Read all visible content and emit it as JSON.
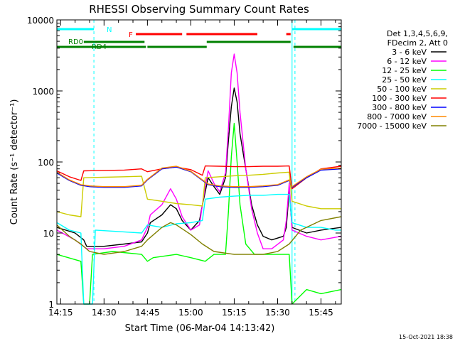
{
  "chart_data": {
    "type": "line",
    "title": "RHESSI Observing Summary Count Rates",
    "xlabel": "Start Time (06-Mar-04 14:13:42)",
    "ylabel": "Count Rate (s⁻¹ detector⁻¹)",
    "yscale": "log",
    "ylim": [
      1,
      10000
    ],
    "xlim": [
      "14:13:42",
      "15:52:00"
    ],
    "x_ticks": [
      "14:15",
      "14:30",
      "14:45",
      "15:00",
      "15:15",
      "15:30",
      "15:45"
    ],
    "y_ticks": [
      "1",
      "10",
      "100",
      "1000",
      "10000"
    ],
    "legend": {
      "position": "right",
      "header": [
        "Det 1,3,4,5,6,9,",
        "FDecim 2, Att 0"
      ],
      "entries": [
        {
          "label": "3 - 6 keV",
          "color": "#000000"
        },
        {
          "label": "6 - 12 keV",
          "color": "#ff00ff"
        },
        {
          "label": "12 - 25 keV",
          "color": "#00ff00"
        },
        {
          "label": "25 - 50 keV",
          "color": "#00ffff"
        },
        {
          "label": "50 - 100 keV",
          "color": "#cccc00"
        },
        {
          "label": "100 - 300 keV",
          "color": "#ff0000"
        },
        {
          "label": "300 - 800 keV",
          "color": "#0000ff"
        },
        {
          "label": "800 - 7000 keV",
          "color": "#ff8800"
        },
        {
          "label": "7000 - 15000 keV",
          "color": "#808000"
        }
      ]
    },
    "flag_labels": {
      "N": "N",
      "F": "F",
      "RD0": "RD0",
      "RD4": "RD4"
    },
    "flag_colors": {
      "N": "#00ffff",
      "F": "#ff0000",
      "RD": "#008000"
    },
    "flags": {
      "N": [
        [
          "14:13:42",
          "14:26:30"
        ],
        [
          "15:35:00",
          "15:52:00"
        ]
      ],
      "F": [
        [
          "14:41:00",
          "14:57:00"
        ],
        [
          "14:58:30",
          "15:23:00"
        ],
        [
          "15:33:00",
          "15:34:30"
        ]
      ],
      "RD0": [
        [
          "14:23:00",
          "14:44:00"
        ],
        [
          "15:05:30",
          "15:34:30"
        ]
      ],
      "RD4": [
        [
          "14:13:42",
          "14:44:30"
        ],
        [
          "14:45:00",
          "15:05:30"
        ],
        [
          "15:35:30",
          "15:52:00"
        ]
      ]
    },
    "vertical_markers": {
      "solid": [
        "14:13:42",
        "15:35:00"
      ],
      "dashed": [
        "14:26:30",
        "15:36:00",
        "15:52:00"
      ]
    },
    "series": [
      {
        "name": "3 - 6 keV",
        "color": "#000000",
        "points": [
          [
            "14:13:42",
            12
          ],
          [
            "14:20:00",
            10
          ],
          [
            "14:23:00",
            8
          ],
          [
            "14:24:00",
            6.5
          ],
          [
            "14:30:00",
            6.5
          ],
          [
            "14:37:00",
            7
          ],
          [
            "14:43:00",
            7.5
          ],
          [
            "14:45:00",
            10
          ],
          [
            "14:46:00",
            14
          ],
          [
            "14:50:00",
            18
          ],
          [
            "14:53:00",
            25
          ],
          [
            "14:55:00",
            22
          ],
          [
            "14:57:00",
            15
          ],
          [
            "15:00:00",
            11
          ],
          [
            "15:03:00",
            15
          ],
          [
            "15:04:00",
            25
          ],
          [
            "15:05:00",
            38
          ],
          [
            "15:06:00",
            60
          ],
          [
            "15:08:00",
            45
          ],
          [
            "15:10:00",
            35
          ],
          [
            "15:12:00",
            60
          ],
          [
            "15:13:00",
            200
          ],
          [
            "15:14:00",
            600
          ],
          [
            "15:15:00",
            1100
          ],
          [
            "15:16:00",
            700
          ],
          [
            "15:17:00",
            250
          ],
          [
            "15:19:00",
            80
          ],
          [
            "15:21:00",
            25
          ],
          [
            "15:23:00",
            13
          ],
          [
            "15:25:00",
            9
          ],
          [
            "15:28:00",
            8
          ],
          [
            "15:32:00",
            9
          ],
          [
            "15:33:00",
            12
          ],
          [
            "15:34:00",
            40
          ],
          [
            "15:35:00",
            12
          ],
          [
            "15:40:00",
            10
          ],
          [
            "15:45:00",
            11
          ],
          [
            "15:52:00",
            12
          ]
        ]
      },
      {
        "name": "6 - 12 keV",
        "color": "#ff00ff",
        "points": [
          [
            "14:13:42",
            11
          ],
          [
            "14:20:00",
            8
          ],
          [
            "14:24:00",
            6
          ],
          [
            "14:30:00",
            6
          ],
          [
            "14:37:00",
            6.5
          ],
          [
            "14:43:00",
            8
          ],
          [
            "14:45:00",
            12
          ],
          [
            "14:46:00",
            18
          ],
          [
            "14:50:00",
            25
          ],
          [
            "14:53:00",
            42
          ],
          [
            "14:55:00",
            30
          ],
          [
            "14:57:00",
            17
          ],
          [
            "15:00:00",
            11
          ],
          [
            "15:03:00",
            13
          ],
          [
            "15:04:00",
            25
          ],
          [
            "15:05:00",
            45
          ],
          [
            "15:06:00",
            75
          ],
          [
            "15:08:00",
            50
          ],
          [
            "15:10:00",
            38
          ],
          [
            "15:12:00",
            70
          ],
          [
            "15:13:00",
            300
          ],
          [
            "15:14:00",
            1800
          ],
          [
            "15:15:00",
            3300
          ],
          [
            "15:16:00",
            1800
          ],
          [
            "15:17:00",
            500
          ],
          [
            "15:19:00",
            80
          ],
          [
            "15:21:00",
            22
          ],
          [
            "15:23:00",
            10
          ],
          [
            "15:25:00",
            6
          ],
          [
            "15:28:00",
            6
          ],
          [
            "15:32:00",
            8
          ],
          [
            "15:33:00",
            15
          ],
          [
            "15:34:00",
            50
          ],
          [
            "15:35:00",
            11
          ],
          [
            "15:40:00",
            9
          ],
          [
            "15:45:00",
            8
          ],
          [
            "15:52:00",
            9
          ]
        ]
      },
      {
        "name": "12 - 25 keV",
        "color": "#00ff00",
        "points": [
          [
            "14:13:42",
            5
          ],
          [
            "14:22:00",
            4
          ],
          [
            "14:23:00",
            1
          ],
          [
            "14:25:00",
            1
          ],
          [
            "14:26:00",
            5
          ],
          [
            "14:33:00",
            5.5
          ],
          [
            "14:43:00",
            5
          ],
          [
            "14:45:00",
            4
          ],
          [
            "14:47:00",
            4.5
          ],
          [
            "14:55:00",
            5
          ],
          [
            "15:00:00",
            4.5
          ],
          [
            "15:05:00",
            4
          ],
          [
            "15:08:00",
            5
          ],
          [
            "15:12:00",
            5
          ],
          [
            "15:13:00",
            20
          ],
          [
            "15:14:00",
            120
          ],
          [
            "15:15:00",
            350
          ],
          [
            "15:16:00",
            100
          ],
          [
            "15:17:00",
            25
          ],
          [
            "15:19:00",
            7
          ],
          [
            "15:22:00",
            5
          ],
          [
            "15:30:00",
            5
          ],
          [
            "15:34:00",
            5
          ],
          [
            "15:35:00",
            1
          ],
          [
            "15:40:00",
            1.6
          ],
          [
            "15:45:00",
            1.4
          ],
          [
            "15:52:00",
            1.6
          ]
        ]
      },
      {
        "name": "25 - 50 keV",
        "color": "#00ffff",
        "points": [
          [
            "14:13:42",
            14
          ],
          [
            "14:18:00",
            11
          ],
          [
            "14:22:00",
            10
          ],
          [
            "14:23:00",
            1
          ],
          [
            "14:25:00",
            1
          ],
          [
            "14:26:00",
            1
          ],
          [
            "14:27:00",
            11
          ],
          [
            "14:35:00",
            10.5
          ],
          [
            "14:43:00",
            10
          ],
          [
            "14:45:00",
            13
          ],
          [
            "14:50:00",
            12
          ],
          [
            "14:55:00",
            13.5
          ],
          [
            "15:00:00",
            14
          ],
          [
            "15:04:00",
            15
          ],
          [
            "15:05:00",
            30
          ],
          [
            "15:10:00",
            32
          ],
          [
            "15:15:00",
            33
          ],
          [
            "15:20:00",
            34
          ],
          [
            "15:25:00",
            34
          ],
          [
            "15:30:00",
            35
          ],
          [
            "15:34:00",
            35
          ],
          [
            "15:35:00",
            14
          ],
          [
            "15:40:00",
            12
          ],
          [
            "15:45:00",
            12
          ],
          [
            "15:50:00",
            11
          ],
          [
            "15:52:00",
            11
          ]
        ]
      },
      {
        "name": "50 - 100 keV",
        "color": "#cccc00",
        "points": [
          [
            "14:13:42",
            20
          ],
          [
            "14:18:00",
            18
          ],
          [
            "14:22:00",
            17
          ],
          [
            "14:23:00",
            60
          ],
          [
            "14:30:00",
            61
          ],
          [
            "14:37:00",
            62
          ],
          [
            "14:43:00",
            63
          ],
          [
            "14:45:00",
            30
          ],
          [
            "14:50:00",
            28
          ],
          [
            "14:55:00",
            26
          ],
          [
            "15:00:00",
            25
          ],
          [
            "15:04:00",
            24
          ],
          [
            "15:05:00",
            60
          ],
          [
            "15:10:00",
            62
          ],
          [
            "15:15:00",
            64
          ],
          [
            "15:20:00",
            65
          ],
          [
            "15:25:00",
            67
          ],
          [
            "15:30:00",
            70
          ],
          [
            "15:34:00",
            72
          ],
          [
            "15:35:00",
            28
          ],
          [
            "15:40:00",
            24
          ],
          [
            "15:45:00",
            22
          ],
          [
            "15:52:00",
            22
          ]
        ]
      },
      {
        "name": "100 - 300 keV",
        "color": "#ff0000",
        "points": [
          [
            "14:13:42",
            75
          ],
          [
            "14:18:00",
            62
          ],
          [
            "14:22:00",
            55
          ],
          [
            "14:23:00",
            75
          ],
          [
            "14:30:00",
            76
          ],
          [
            "14:37:00",
            77
          ],
          [
            "14:43:00",
            80
          ],
          [
            "14:45:00",
            73
          ],
          [
            "14:50:00",
            80
          ],
          [
            "14:55:00",
            85
          ],
          [
            "15:00:00",
            78
          ],
          [
            "15:04:00",
            65
          ],
          [
            "15:05:00",
            88
          ],
          [
            "15:10:00",
            87
          ],
          [
            "15:15:00",
            86
          ],
          [
            "15:20:00",
            86
          ],
          [
            "15:25:00",
            87
          ],
          [
            "15:30:00",
            87
          ],
          [
            "15:34:00",
            88
          ],
          [
            "15:35:00",
            42
          ],
          [
            "15:40:00",
            60
          ],
          [
            "15:45:00",
            80
          ],
          [
            "15:52:00",
            87
          ]
        ]
      },
      {
        "name": "300 - 800 keV",
        "color": "#0000ff",
        "points": [
          [
            "14:13:42",
            70
          ],
          [
            "14:18:00",
            55
          ],
          [
            "14:22:00",
            47
          ],
          [
            "14:25:00",
            45
          ],
          [
            "14:30:00",
            44
          ],
          [
            "14:37:00",
            44
          ],
          [
            "14:43:00",
            46
          ],
          [
            "14:45:00",
            56
          ],
          [
            "14:50:00",
            80
          ],
          [
            "14:55:00",
            85
          ],
          [
            "15:00:00",
            73
          ],
          [
            "15:04:00",
            55
          ],
          [
            "15:06:00",
            48
          ],
          [
            "15:10:00",
            45
          ],
          [
            "15:15:00",
            44
          ],
          [
            "15:20:00",
            44
          ],
          [
            "15:25:00",
            45
          ],
          [
            "15:30:00",
            47
          ],
          [
            "15:34:00",
            55
          ],
          [
            "15:35:00",
            44
          ],
          [
            "15:40:00",
            60
          ],
          [
            "15:45:00",
            77
          ],
          [
            "15:52:00",
            80
          ]
        ]
      },
      {
        "name": "800 - 7000 keV",
        "color": "#ff8800",
        "points": [
          [
            "14:13:42",
            72
          ],
          [
            "14:18:00",
            56
          ],
          [
            "14:22:00",
            48
          ],
          [
            "14:25:00",
            46
          ],
          [
            "14:30:00",
            45
          ],
          [
            "14:37:00",
            45
          ],
          [
            "14:43:00",
            47
          ],
          [
            "14:45:00",
            57
          ],
          [
            "14:50:00",
            82
          ],
          [
            "14:55:00",
            87
          ],
          [
            "15:00:00",
            74
          ],
          [
            "15:04:00",
            56
          ],
          [
            "15:06:00",
            49
          ],
          [
            "15:10:00",
            46
          ],
          [
            "15:15:00",
            45
          ],
          [
            "15:20:00",
            45
          ],
          [
            "15:25:00",
            46
          ],
          [
            "15:30:00",
            48
          ],
          [
            "15:34:00",
            56
          ],
          [
            "15:35:00",
            45
          ],
          [
            "15:40:00",
            62
          ],
          [
            "15:45:00",
            79
          ],
          [
            "15:52:00",
            82
          ]
        ]
      },
      {
        "name": "7000 - 15000 keV",
        "color": "#808000",
        "points": [
          [
            "14:13:42",
            13
          ],
          [
            "14:18:00",
            9
          ],
          [
            "14:22:00",
            7
          ],
          [
            "14:25:00",
            5.5
          ],
          [
            "14:30:00",
            5
          ],
          [
            "14:37:00",
            5.5
          ],
          [
            "14:43:00",
            6.5
          ],
          [
            "14:45:00",
            8
          ],
          [
            "14:50:00",
            12
          ],
          [
            "14:53:00",
            14
          ],
          [
            "14:55:00",
            13
          ],
          [
            "15:00:00",
            9.5
          ],
          [
            "15:04:00",
            7
          ],
          [
            "15:08:00",
            5.5
          ],
          [
            "15:15:00",
            5
          ],
          [
            "15:25:00",
            5
          ],
          [
            "15:30:00",
            5.5
          ],
          [
            "15:34:00",
            7
          ],
          [
            "15:38:00",
            11
          ],
          [
            "15:45:00",
            15
          ],
          [
            "15:52:00",
            17
          ]
        ]
      }
    ]
  },
  "footer_timestamp": "15-Oct-2021 18:38"
}
